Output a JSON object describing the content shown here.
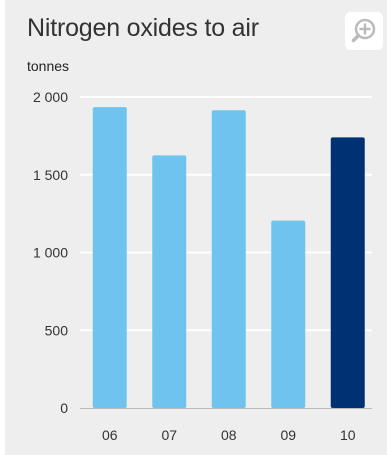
{
  "chart_data": {
    "type": "bar",
    "title": "Nitrogen oxides to air",
    "ylabel": "tonnes",
    "xlabel": "",
    "categories": [
      "06",
      "07",
      "08",
      "09",
      "10"
    ],
    "values": [
      1935,
      1625,
      1915,
      1205,
      1740
    ],
    "ylim": [
      0,
      2000
    ],
    "yticks": [
      0,
      500,
      1000,
      1500,
      2000
    ],
    "ytick_labels": [
      "0",
      "500",
      "1 000",
      "1 500",
      "2 000"
    ],
    "grid": true,
    "colors": {
      "bar": "#6ec4ee",
      "highlight_bar": "#003173",
      "highlight_index": 4,
      "grid": "#ffffff",
      "background": "#eeeeee"
    }
  },
  "toolbar": {
    "zoom_icon": "zoom-in-icon"
  }
}
